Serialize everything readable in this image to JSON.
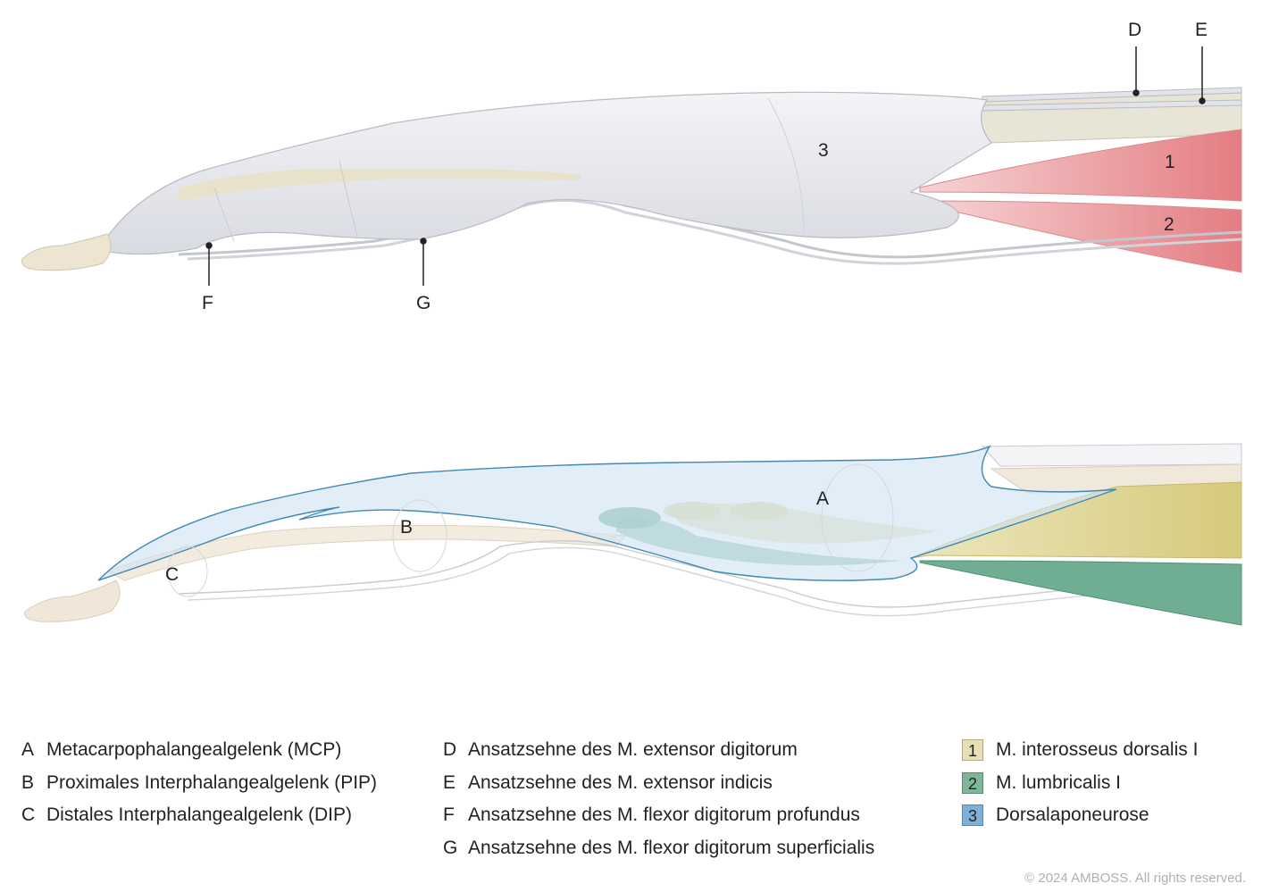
{
  "top_labels": {
    "D": "D",
    "E": "E",
    "F": "F",
    "G": "G",
    "n1": "1",
    "n2": "2",
    "n3": "3"
  },
  "bottom_labels": {
    "A": "A",
    "B": "B",
    "C": "C"
  },
  "legend": {
    "joints": [
      {
        "key": "A",
        "text": "Metacarpophalangealgelenk (MCP)"
      },
      {
        "key": "B",
        "text": "Proximales Interphalangealgelenk (PIP)"
      },
      {
        "key": "C",
        "text": "Distales Interphalangealgelenk (DIP)"
      }
    ],
    "tendons": [
      {
        "key": "D",
        "text": "Ansatzsehne des M. extensor digitorum"
      },
      {
        "key": "E",
        "text": "Ansatzsehne des M. extensor indicis"
      },
      {
        "key": "F",
        "text": "Ansatzsehne des M. flexor digitorum profundus"
      },
      {
        "key": "G",
        "text": "Ansatzsehne des M. flexor digitorum superficialis"
      }
    ],
    "structures": [
      {
        "key": "1",
        "text": "M. interosseus dorsalis I",
        "color": "#e8e0b4"
      },
      {
        "key": "2",
        "text": "M. lumbricalis I",
        "color": "#7fb69a"
      },
      {
        "key": "3",
        "text": "Dorsalaponeurose",
        "color": "#7fb0d8"
      }
    ]
  },
  "colors": {
    "muscle": "#e88a8e",
    "bone": "#efe6d4",
    "sheath": "#e6e7ec",
    "interosseus": "#d8cf8a",
    "lumbricalis": "#6fae92",
    "aponeurosis": "#cfe3f2",
    "aponeurosis_stroke": "#3f89b5"
  },
  "copyright": "© 2024 AMBOSS. All rights reserved."
}
